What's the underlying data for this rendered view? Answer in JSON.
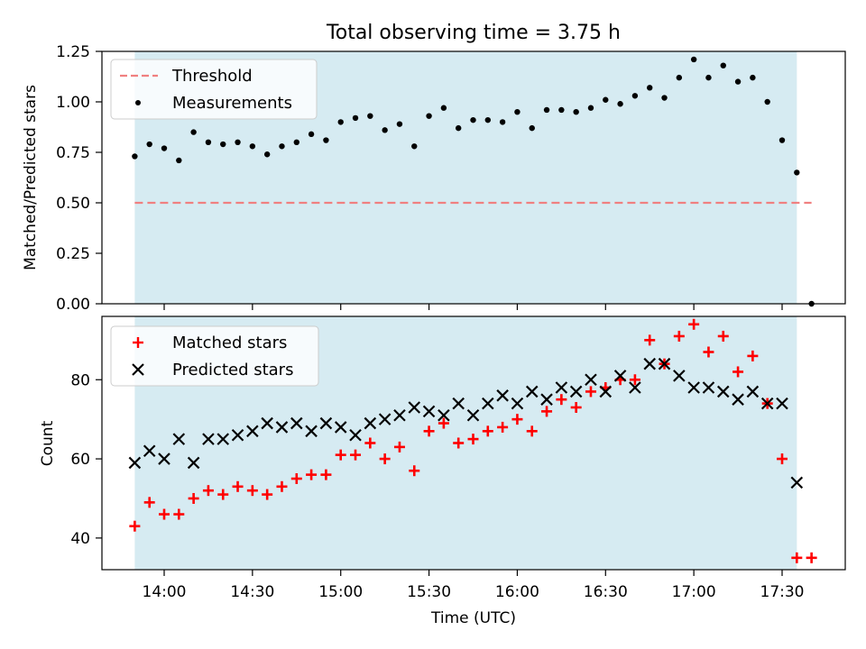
{
  "title": "Total observing time = 3.75 h",
  "colors": {
    "shade": "#add8e6",
    "threshold": "#f08080",
    "measurement": "#000000",
    "matched": "#ff0000",
    "predicted": "#000000"
  },
  "chart_data": [
    {
      "type": "scatter",
      "title": "Total observing time = 3.75 h",
      "xlabel": "",
      "ylabel": "Matched/Predicted stars",
      "ylim": [
        0,
        1.25
      ],
      "yticks": [
        "0.00",
        "0.25",
        "0.50",
        "0.75",
        "1.00",
        "1.25"
      ],
      "shaded_x_range": [
        "13:50",
        "17:35"
      ],
      "legend_position": "top-left",
      "threshold": {
        "name": "Threshold",
        "value": 0.5,
        "x_range": [
          "13:50",
          "17:40"
        ],
        "style": "dashed"
      },
      "series": [
        {
          "name": "Measurements",
          "marker": "dot",
          "x": [
            "13:50",
            "13:55",
            "14:00",
            "14:05",
            "14:10",
            "14:15",
            "14:20",
            "14:25",
            "14:30",
            "14:35",
            "14:40",
            "14:45",
            "14:50",
            "14:55",
            "15:00",
            "15:05",
            "15:10",
            "15:15",
            "15:20",
            "15:25",
            "15:30",
            "15:35",
            "15:40",
            "15:45",
            "15:50",
            "15:55",
            "16:00",
            "16:05",
            "16:10",
            "16:15",
            "16:20",
            "16:25",
            "16:30",
            "16:35",
            "16:40",
            "16:45",
            "16:50",
            "16:55",
            "17:00",
            "17:05",
            "17:10",
            "17:15",
            "17:20",
            "17:25",
            "17:30",
            "17:35",
            "17:40"
          ],
          "y": [
            0.73,
            0.79,
            0.77,
            0.71,
            0.85,
            0.8,
            0.79,
            0.8,
            0.78,
            0.74,
            0.78,
            0.8,
            0.84,
            0.81,
            0.9,
            0.92,
            0.93,
            0.86,
            0.89,
            0.78,
            0.93,
            0.97,
            0.87,
            0.91,
            0.91,
            0.9,
            0.95,
            0.87,
            0.96,
            0.96,
            0.95,
            0.97,
            1.01,
            0.99,
            1.03,
            1.07,
            1.02,
            1.12,
            1.21,
            1.12,
            1.18,
            1.1,
            1.12,
            1.0,
            0.81,
            0.65,
            0.0
          ]
        }
      ]
    },
    {
      "type": "scatter",
      "xlabel": "Time (UTC)",
      "ylabel": "Count",
      "ylim": [
        32,
        96
      ],
      "yticks": [
        "40",
        "60",
        "80"
      ],
      "xticks": [
        "14:00",
        "14:30",
        "15:00",
        "15:30",
        "16:00",
        "16:30",
        "17:00",
        "17:30"
      ],
      "shaded_x_range": [
        "13:50",
        "17:35"
      ],
      "legend_position": "top-left",
      "series": [
        {
          "name": "Matched stars",
          "marker": "plus",
          "x": [
            "13:50",
            "13:55",
            "14:00",
            "14:05",
            "14:10",
            "14:15",
            "14:20",
            "14:25",
            "14:30",
            "14:35",
            "14:40",
            "14:45",
            "14:50",
            "14:55",
            "15:00",
            "15:05",
            "15:10",
            "15:15",
            "15:20",
            "15:25",
            "15:30",
            "15:35",
            "15:40",
            "15:45",
            "15:50",
            "15:55",
            "16:00",
            "16:05",
            "16:10",
            "16:15",
            "16:20",
            "16:25",
            "16:30",
            "16:35",
            "16:40",
            "16:45",
            "16:50",
            "16:55",
            "17:00",
            "17:05",
            "17:10",
            "17:15",
            "17:20",
            "17:25",
            "17:30",
            "17:35",
            "17:40"
          ],
          "y": [
            43,
            49,
            46,
            46,
            50,
            52,
            51,
            53,
            52,
            51,
            53,
            55,
            56,
            56,
            61,
            61,
            64,
            60,
            63,
            57,
            67,
            69,
            64,
            65,
            67,
            68,
            70,
            67,
            72,
            75,
            73,
            77,
            78,
            80,
            80,
            90,
            84,
            91,
            94,
            87,
            91,
            82,
            86,
            74,
            60,
            35,
            35
          ]
        },
        {
          "name": "Predicted stars",
          "marker": "x",
          "x": [
            "13:50",
            "13:55",
            "14:00",
            "14:05",
            "14:10",
            "14:15",
            "14:20",
            "14:25",
            "14:30",
            "14:35",
            "14:40",
            "14:45",
            "14:50",
            "14:55",
            "15:00",
            "15:05",
            "15:10",
            "15:15",
            "15:20",
            "15:25",
            "15:30",
            "15:35",
            "15:40",
            "15:45",
            "15:50",
            "15:55",
            "16:00",
            "16:05",
            "16:10",
            "16:15",
            "16:20",
            "16:25",
            "16:30",
            "16:35",
            "16:40",
            "16:45",
            "16:50",
            "16:55",
            "17:00",
            "17:05",
            "17:10",
            "17:15",
            "17:20",
            "17:25",
            "17:30",
            "17:35"
          ],
          "y": [
            59,
            62,
            60,
            65,
            59,
            65,
            65,
            66,
            67,
            69,
            68,
            69,
            67,
            69,
            68,
            66,
            69,
            70,
            71,
            73,
            72,
            71,
            74,
            71,
            74,
            76,
            74,
            77,
            75,
            78,
            77,
            80,
            77,
            81,
            78,
            84,
            84,
            81,
            78,
            78,
            77,
            75,
            77,
            74,
            74,
            54
          ]
        }
      ]
    }
  ]
}
